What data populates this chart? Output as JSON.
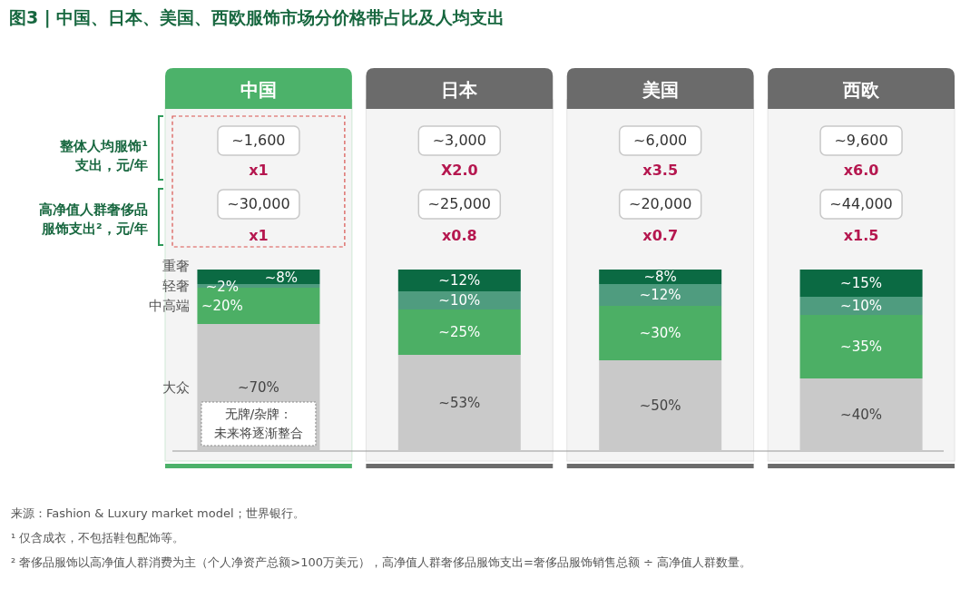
{
  "chart_data": {
    "type": "bar",
    "stacked": true,
    "data_labels": true,
    "title": "图3 | 中国、日本、美国、西欧服饰市场分价格带占比及人均支出",
    "categories": [
      "中国",
      "日本",
      "美国",
      "西欧"
    ],
    "series": [
      {
        "name": "大众",
        "color": "#c9c9c9",
        "values": [
          70,
          53,
          50,
          40
        ],
        "value_labels": [
          "~70%",
          "~53%",
          "~50%",
          "~40%"
        ]
      },
      {
        "name": "中高端",
        "color": "#4caf65",
        "values": [
          20,
          25,
          30,
          35
        ],
        "value_labels": [
          "~20%",
          "~25%",
          "~30%",
          "~35%"
        ]
      },
      {
        "name": "轻奢",
        "color": "#4f9c7f",
        "values": [
          2,
          10,
          12,
          10
        ],
        "value_labels": [
          "~2%",
          "~10%",
          "~12%",
          "~10%"
        ]
      },
      {
        "name": "重奢",
        "color": "#0b6a43",
        "values": [
          8,
          12,
          8,
          15
        ],
        "value_labels": [
          "~8%",
          "~12%",
          "~8%",
          "~15%"
        ]
      }
    ],
    "annotations": [
      "整体人均服饰¹支出，元/年",
      "高净值人群奢侈品服饰支出²，元/年",
      "~1,600",
      "x1",
      "~30,000",
      "x1",
      "~3,000",
      "X2.0",
      "~25,000",
      "x0.8",
      "~6,000",
      "x3.5",
      "~20,000",
      "x0.7",
      "~9,600",
      "x6.0",
      "~44,000",
      "x1.5",
      "无牌/杂牌：未来将逐渐整合",
      "来源：Fashion & Luxury market model；世界银行。",
      "¹ 仅含成衣，不包括鞋包配饰等。",
      "² 奢侈品服饰以高净值人群消费为主（个人净资产总额>100万美元），高净值人群奢侈品服饰支出=奢侈品服饰销售总额 ÷ 高净值人群数量。"
    ]
  }
}
